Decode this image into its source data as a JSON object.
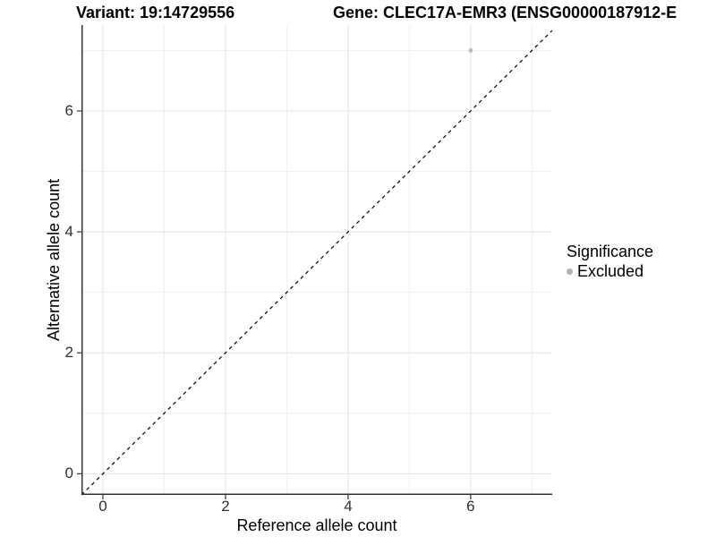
{
  "chart_data": {
    "type": "scatter",
    "titles": {
      "left": "Variant: 19:14729556",
      "right": "Gene: CLEC17A-EMR3 (ENSG00000187912-E"
    },
    "xlabel": "Reference allele count",
    "ylabel": "Alternative allele count",
    "xlim": [
      -0.35,
      7.33
    ],
    "ylim": [
      -0.35,
      7.42
    ],
    "x_ticks": [
      0,
      2,
      4,
      6
    ],
    "y_ticks": [
      0,
      2,
      4,
      6
    ],
    "x_minor_grid": [
      1,
      3,
      5,
      7
    ],
    "y_minor_grid": [
      1,
      3,
      5,
      7
    ],
    "grid": true,
    "points": [
      {
        "x": 6,
        "y": 7,
        "significance": "Excluded",
        "color": "#bebebe"
      }
    ],
    "identity_line": {
      "slope": 1,
      "intercept": 0,
      "style": "dashed",
      "color": "#000000"
    },
    "legend": {
      "title": "Significance",
      "position": "right",
      "items": [
        {
          "label": "Excluded",
          "color": "#b3b3b3",
          "marker": "circle-icon"
        }
      ]
    },
    "colors": {
      "background": "#ffffff",
      "grid_major": "#e3e3e3",
      "grid_minor": "#f1f1f1",
      "axis_line": "#333333",
      "axis_text": "#303030",
      "point": "#bebebe"
    }
  }
}
